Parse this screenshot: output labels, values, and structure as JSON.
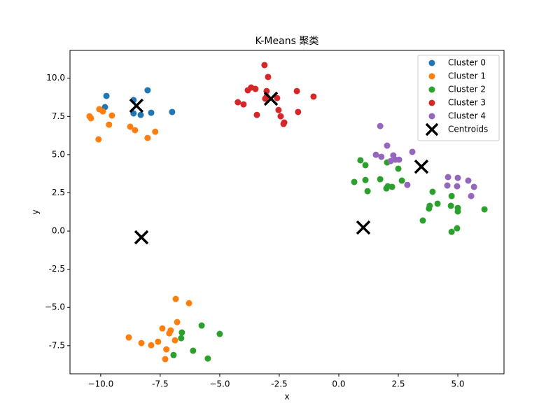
{
  "chart_data": {
    "type": "scatter",
    "title": "K-Means 聚类",
    "x_label": "x",
    "y_label": "y",
    "xlim": [
      -11.29,
      6.94
    ],
    "ylim": [
      -9.34,
      11.82
    ],
    "xticks": [
      {
        "value": -10,
        "label": "−10.0"
      },
      -7.5,
      {
        "value": -5,
        "label": "−5.0"
      },
      -2.5,
      {
        "value": 0,
        "label": "0.0"
      },
      2.5,
      {
        "value": 5,
        "label": "5.0"
      }
    ],
    "yticks": [
      -7.5,
      {
        "value": -5,
        "label": "−5.0"
      },
      -2.5,
      {
        "value": 0,
        "label": "0.0"
      },
      2.5,
      {
        "value": 5,
        "label": "5.0"
      },
      7.5,
      {
        "value": 10,
        "label": "10.0"
      }
    ],
    "legend": "upper right",
    "series": [
      {
        "name": "Cluster 0",
        "color": "#1f77b4",
        "marker": "o",
        "x": [
          -9.76,
          -9.82,
          -8.62,
          -8.03,
          -7.88,
          -8.32,
          -7.0,
          -8.62
        ],
        "values": [
          8.84,
          8.11,
          8.57,
          9.21,
          7.74,
          7.6,
          7.79,
          7.7
        ]
      },
      {
        "name": "Cluster 1",
        "color": "#ff7f0e",
        "marker": "o",
        "x": [
          -10.47,
          -10.41,
          -10.06,
          -9.91,
          -9.53,
          -9.65,
          -10.09,
          -8.76,
          -8.56,
          -7.71,
          -8.03,
          -6.85,
          -6.29,
          -6.79,
          -7.41,
          -7.06,
          -7.12,
          -7.59,
          -6.88,
          -8.82,
          -8.29,
          -7.88,
          -7.24,
          -7.29
        ],
        "values": [
          7.51,
          7.38,
          7.97,
          7.83,
          7.56,
          6.96,
          6.0,
          6.83,
          6.6,
          6.5,
          6.09,
          -4.44,
          -4.72,
          -5.96,
          -6.37,
          -6.5,
          -6.69,
          -7.24,
          -7.15,
          -6.96,
          -7.33,
          -7.47,
          -7.74,
          -8.38
        ]
      },
      {
        "name": "Cluster 2",
        "color": "#2ca02c",
        "marker": "o",
        "x": [
          0.91,
          1.12,
          2.03,
          2.5,
          1.74,
          1.12,
          0.65,
          2.65,
          2.06,
          2.24,
          1.21,
          2.0,
          3.94,
          3.82,
          3.79,
          4.15,
          4.74,
          4.71,
          5.0,
          5.0,
          6.12,
          3.53,
          4.97,
          4.74,
          -6.59,
          -6.62,
          -5.76,
          -5.0,
          -6.12,
          -6.94,
          -5.5
        ],
        "values": [
          4.63,
          4.31,
          4.49,
          4.08,
          3.39,
          3.34,
          3.21,
          3.3,
          2.93,
          2.89,
          2.61,
          2.79,
          2.57,
          1.65,
          1.47,
          1.79,
          2.29,
          1.65,
          1.51,
          1.28,
          1.42,
          0.69,
          0.18,
          -0.05,
          -6.64,
          -7.01,
          -6.18,
          -6.73,
          -7.83,
          -8.11,
          -8.34
        ]
      },
      {
        "name": "Cluster 3",
        "color": "#d62728",
        "marker": "o",
        "x": [
          -3.12,
          -2.97,
          -3.68,
          -3.82,
          -3.5,
          -4.24,
          -4.0,
          -3.03,
          -3.03,
          -3.09,
          -2.59,
          -3.44,
          -2.53,
          -2.44,
          -2.29,
          -2.32,
          -1.76,
          -1.71,
          -1.06
        ],
        "values": [
          10.86,
          10.08,
          9.39,
          9.21,
          9.3,
          8.43,
          8.29,
          9.16,
          8.8,
          8.66,
          8.7,
          7.6,
          7.92,
          7.51,
          7.1,
          7.01,
          9.16,
          7.79,
          8.8
        ]
      },
      {
        "name": "Cluster 4",
        "color": "#9467bd",
        "marker": "o",
        "x": [
          1.74,
          2.03,
          1.56,
          1.79,
          2.29,
          2.18,
          2.38,
          2.53,
          3.09,
          4.59,
          5.0,
          5.44,
          5.68,
          4.56,
          4.97,
          5.56,
          2.88
        ],
        "values": [
          6.87,
          5.59,
          4.99,
          4.86,
          4.95,
          4.58,
          4.67,
          4.67,
          5.18,
          3.53,
          3.48,
          3.3,
          2.89,
          2.98,
          2.93,
          2.29,
          3.02
        ]
      },
      {
        "name": "Centroids",
        "color": "#000000",
        "marker": "x",
        "x": [
          -8.5,
          -2.85,
          3.47,
          1.03,
          -8.29
        ],
        "values": [
          8.2,
          8.66,
          4.21,
          0.23,
          -0.41
        ]
      }
    ]
  }
}
